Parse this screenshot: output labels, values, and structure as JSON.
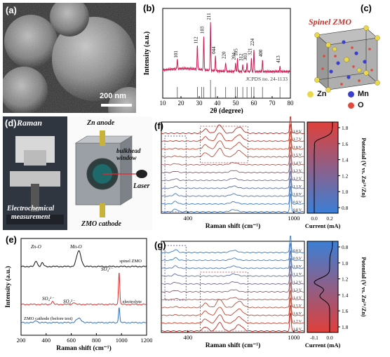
{
  "panels": {
    "a": {
      "label": "(a)",
      "scalebar": "200 nm"
    },
    "b": {
      "label": "(b)",
      "ylabel": "Intensity (a.u.)",
      "xlabel": "2θ (degree)",
      "reference": "JCPDS no. 24-1133",
      "xticks": [
        "10",
        "20",
        "30",
        "40",
        "50",
        "60",
        "70",
        "80"
      ],
      "peaks": [
        {
          "hkl": "101",
          "x": 18.0,
          "h": 0.2
        },
        {
          "hkl": "112",
          "x": 29.0,
          "h": 0.48
        },
        {
          "hkl": "103",
          "x": 32.5,
          "h": 0.68
        },
        {
          "hkl": "211",
          "x": 36.2,
          "h": 0.95
        },
        {
          "hkl": "044",
          "x": 38.9,
          "h": 0.28
        },
        {
          "hkl": "220",
          "x": 44.5,
          "h": 0.18
        },
        {
          "hkl": "204",
          "x": 49.9,
          "h": 0.16
        },
        {
          "hkl": "105",
          "x": 51.0,
          "h": 0.24
        },
        {
          "hkl": "312",
          "x": 53.9,
          "h": 0.14
        },
        {
          "hkl": "303",
          "x": 56.2,
          "h": 0.15
        },
        {
          "hkl": "321",
          "x": 58.6,
          "h": 0.25
        },
        {
          "hkl": "224",
          "x": 60.0,
          "h": 0.44
        },
        {
          "hkl": "400",
          "x": 64.7,
          "h": 0.22
        },
        {
          "hkl": "413",
          "x": 74.3,
          "h": 0.1
        }
      ],
      "refsticks": [
        18.0,
        29.0,
        31.3,
        32.5,
        36.2,
        38.9,
        44.5,
        49.9,
        51.0,
        53.9,
        56.2,
        58.6,
        60.0,
        64.7,
        74.3
      ]
    },
    "c": {
      "label": "(c)",
      "title": "Spinel ZMO",
      "legend": [
        {
          "name": "Zn",
          "color": "#e8d84a"
        },
        {
          "name": "Mn",
          "color": "#3b3fd0"
        },
        {
          "name": "O",
          "color": "#e04a3a"
        }
      ]
    },
    "d": {
      "label": "(d)",
      "raman": "Raman",
      "electrochem": "Electrochemical\nmeasurement",
      "zn_anode": "Zn anode",
      "bulkhead": "bulkhead\nwindow",
      "laser": "Laser",
      "cathode": "ZMO cathode"
    },
    "e": {
      "label": "(e)",
      "xlabel": "Raman shift (cm⁻¹)",
      "ylabel": "Intensity (a.u.)",
      "xticks": [
        "200",
        "400",
        "600",
        "800",
        "1000",
        "1200"
      ],
      "traces": [
        {
          "name": "spinel ZMO",
          "color": "#111111"
        },
        {
          "name": "electrolyte",
          "color": "#e0302a"
        },
        {
          "name": "ZMO cathode (before test)",
          "color": "#2f6fc7"
        }
      ],
      "annotations": [
        "Zn-O",
        "Mn-O",
        "SO₄²⁻",
        "SO₄²⁻",
        "SO₄²⁻"
      ]
    },
    "f": {
      "label": "(f)",
      "xlabel": "Raman shift (cm⁻¹)",
      "xticks": [
        "400",
        "1000"
      ],
      "voltages": [
        "1.8 V",
        "1.7 V",
        "1.6 V",
        "1.5 V",
        "1.4 V",
        "1.3 V",
        "1.2 V",
        "1.1 V",
        "1.0 V",
        "0.9 V",
        "0.8 V"
      ],
      "cv_xlabel": "Current (mA)",
      "cv_xticks": [
        "0.0",
        "0.2"
      ],
      "cv_ylabel": "Potential (V vs. Zn²⁺/Zn)",
      "cv_yticks": [
        "1.8",
        "1.6",
        "1.4",
        "1.2",
        "1.0",
        "0.8"
      ]
    },
    "g": {
      "label": "(g)",
      "xlabel": "Raman shift (cm⁻¹)",
      "xticks": [
        "400",
        "1000"
      ],
      "voltages": [
        "0.8 V",
        "0.9 V",
        "1.0 V",
        "1.1 V",
        "1.2 V",
        "1.3 V",
        "1.4 V",
        "1.5 V",
        "1.6 V",
        "1.7 V",
        "1.8 V"
      ],
      "cv_xlabel": "Current (mA)",
      "cv_xticks": [
        "-0.1",
        "0.0"
      ],
      "cv_ylabel": "Potential (V vs. Zn²⁺/Zn)",
      "cv_yticks": [
        "0.8",
        "1.0",
        "1.2",
        "1.4",
        "1.6",
        "1.8"
      ]
    }
  },
  "chart_data": [
    {
      "type": "line",
      "panel": "b",
      "xlabel": "2θ (degree)",
      "ylabel": "Intensity (a.u.)",
      "xlim": [
        10,
        80
      ],
      "peaks_x": [
        18.0,
        29.0,
        32.5,
        36.2,
        38.9,
        44.5,
        49.9,
        51.0,
        53.9,
        56.2,
        58.6,
        60.0,
        64.7,
        74.3
      ],
      "peak_labels": [
        "101",
        "112",
        "103",
        "211",
        "044",
        "220",
        "204",
        "105",
        "312",
        "303",
        "321",
        "224",
        "400",
        "413"
      ]
    },
    {
      "type": "line",
      "panel": "e",
      "xlabel": "Raman shift (cm⁻¹)",
      "ylabel": "Intensity (a.u.)",
      "xlim": [
        200,
        1200
      ],
      "series": [
        {
          "name": "spinel ZMO"
        },
        {
          "name": "electrolyte"
        },
        {
          "name": "ZMO cathode (before test)"
        }
      ]
    }
  ]
}
